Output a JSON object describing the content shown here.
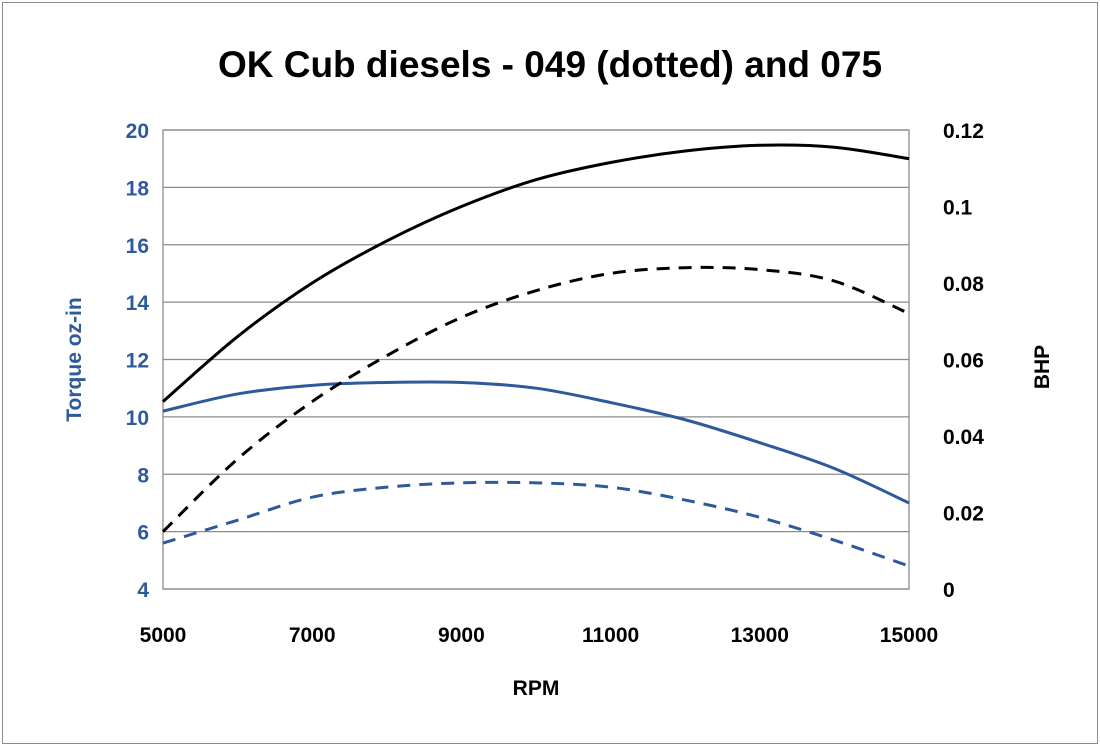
{
  "chart_data": {
    "type": "line",
    "title": "OK Cub diesels - 049 (dotted) and 075",
    "xlabel": "RPM",
    "ylabel": "Torque oz-in",
    "y2label": "BHP",
    "xlim": [
      5000,
      15000
    ],
    "ylim": [
      4,
      20
    ],
    "y2lim": [
      0,
      0.12
    ],
    "x_ticks": [
      "5000",
      "7000",
      "9000",
      "11000",
      "13000",
      "15000"
    ],
    "y_ticks": [
      "4",
      "6",
      "8",
      "10",
      "12",
      "14",
      "16",
      "18",
      "20"
    ],
    "y2_ticks": [
      "0",
      "0.02",
      "0.04",
      "0.06",
      "0.08",
      "0.1",
      "0.12"
    ],
    "grid": true,
    "legend": "none",
    "colors": {
      "torque": "#2e5a9c",
      "bhp": "#000000",
      "ylabel": "#2e5a9c",
      "y2label": "#000000"
    },
    "series": [
      {
        "axis": "left",
        "style": "solid",
        "color": "#2e5a9c",
        "x": [
          5000,
          6000,
          7000,
          8000,
          9000,
          10000,
          11000,
          12000,
          13000,
          14000,
          15000
        ],
        "y": [
          10.2,
          10.8,
          11.1,
          11.2,
          11.2,
          11.0,
          10.5,
          9.9,
          9.1,
          8.2,
          7.0
        ]
      },
      {
        "axis": "left",
        "style": "dashed",
        "color": "#2e5a9c",
        "x": [
          5000,
          6000,
          7000,
          8000,
          9000,
          10000,
          11000,
          12000,
          13000,
          14000,
          15000
        ],
        "y": [
          5.6,
          6.4,
          7.2,
          7.55,
          7.7,
          7.7,
          7.55,
          7.1,
          6.5,
          5.7,
          4.8
        ]
      },
      {
        "axis": "right",
        "style": "solid",
        "color": "#000000",
        "x": [
          5000,
          6000,
          7000,
          8000,
          9000,
          10000,
          11000,
          12000,
          13000,
          14000,
          15000
        ],
        "y": [
          0.049,
          0.066,
          0.08,
          0.091,
          0.1,
          0.107,
          0.1115,
          0.1145,
          0.116,
          0.1155,
          0.1125
        ]
      },
      {
        "axis": "right",
        "style": "dashed",
        "color": "#000000",
        "x": [
          5000,
          6000,
          7000,
          8000,
          9000,
          10000,
          11000,
          12000,
          13000,
          14000,
          15000
        ],
        "y": [
          0.015,
          0.034,
          0.049,
          0.061,
          0.071,
          0.078,
          0.0825,
          0.084,
          0.0835,
          0.0805,
          0.072
        ]
      }
    ]
  }
}
